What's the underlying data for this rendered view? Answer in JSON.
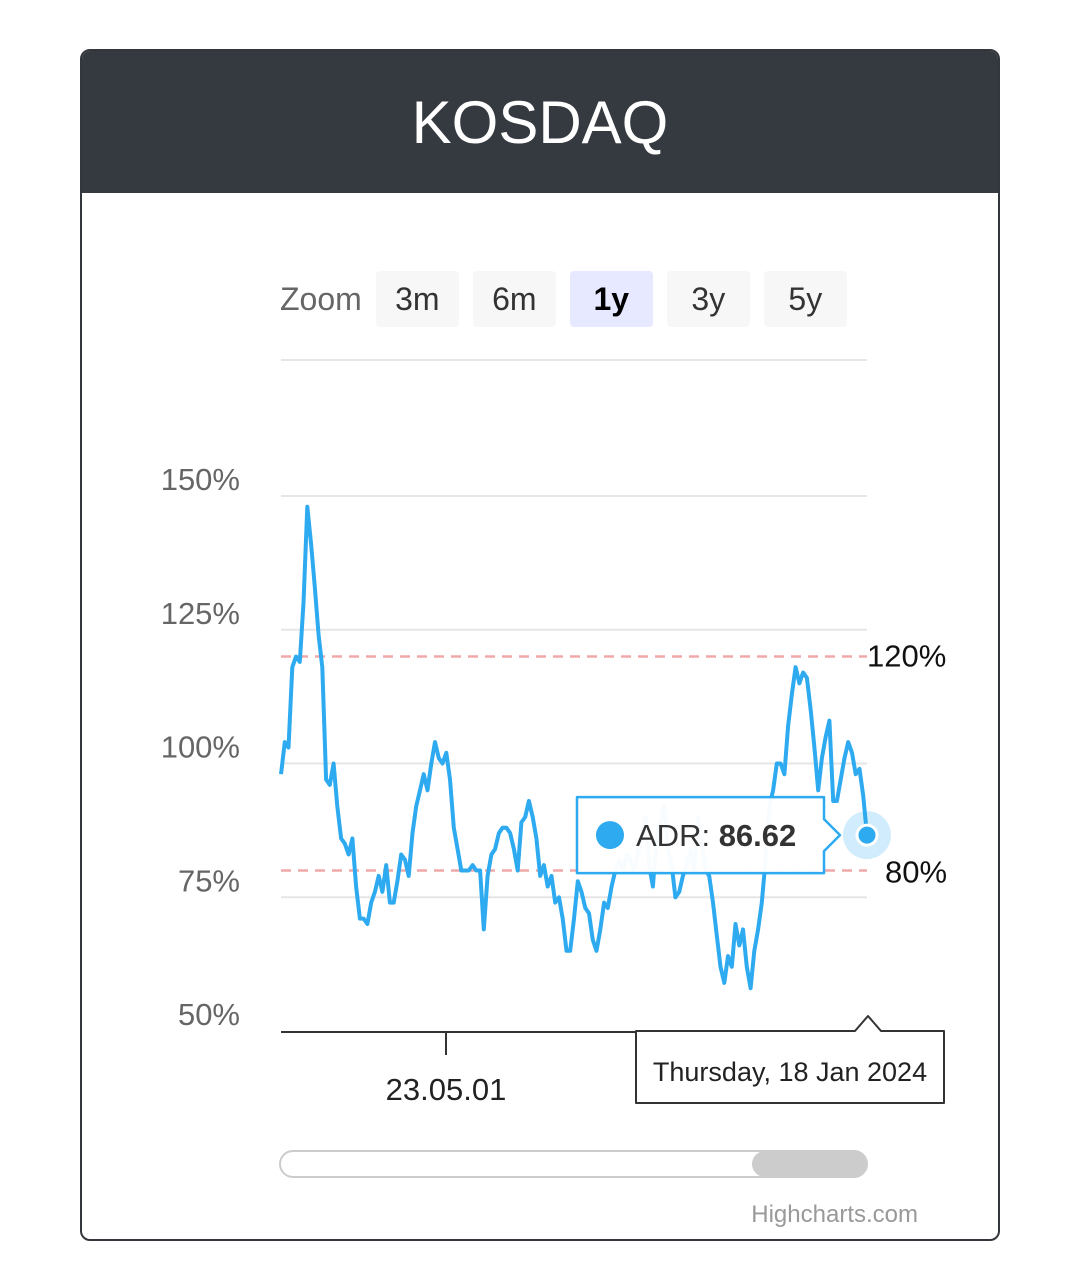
{
  "title": "KOSDAQ",
  "zoom": {
    "label": "Zoom",
    "buttons": [
      "3m",
      "6m",
      "1y",
      "3y",
      "5y"
    ],
    "active": "1y"
  },
  "tooltip": {
    "series_label": "ADR:",
    "value": "86.62",
    "date": "Thursday, 18 Jan 2024"
  },
  "credits": "Highcharts.com",
  "colors": {
    "line": "#2daaf0",
    "plot_band_line": "#f0a8a8",
    "header": "#353a40"
  },
  "chart_data": {
    "type": "line",
    "title": "KOSDAQ",
    "ylim": [
      50,
      160
    ],
    "yticks": [
      "50%",
      "75%",
      "100%",
      "125%",
      "150%"
    ],
    "ytick_values": [
      50,
      75,
      100,
      125,
      150
    ],
    "xtick_labels": [
      "23.05.01"
    ],
    "plot_lines": [
      {
        "value": 120,
        "label": "120%"
      },
      {
        "value": 80,
        "label": "80%"
      }
    ],
    "series": [
      {
        "name": "ADR",
        "values": [
          98,
          104,
          103,
          118,
          120,
          119,
          130,
          148,
          141,
          133,
          124,
          118,
          97,
          96,
          100,
          92,
          86,
          85,
          83,
          86,
          77,
          71,
          71,
          70,
          74,
          76,
          79,
          76,
          81,
          74,
          74,
          78,
          83,
          82,
          79,
          87,
          92,
          95,
          98,
          95,
          100,
          104,
          101,
          100,
          102,
          97,
          88,
          84,
          80,
          80,
          80,
          81,
          80,
          80,
          69,
          79,
          83,
          84,
          87,
          88,
          88,
          87,
          84,
          80,
          89,
          90,
          93,
          90,
          86,
          79,
          81,
          77,
          79,
          74,
          75,
          71,
          65,
          65,
          71,
          78,
          76,
          73,
          72,
          67,
          65,
          69,
          74,
          73,
          77,
          80,
          82,
          80,
          83,
          82,
          80,
          83,
          86,
          90,
          81,
          77,
          86,
          89,
          92,
          84,
          81,
          75,
          76,
          79,
          81,
          84,
          80,
          90,
          85,
          80,
          79,
          74,
          68,
          62,
          59,
          64,
          62,
          70,
          66,
          69,
          62,
          58,
          65,
          69,
          74,
          82,
          92,
          95,
          100,
          100,
          98,
          107,
          113,
          118,
          115,
          117,
          116,
          110,
          103,
          95,
          101,
          105,
          108,
          93,
          93,
          97,
          101,
          104,
          102,
          98,
          99,
          94,
          86.62
        ]
      }
    ]
  }
}
